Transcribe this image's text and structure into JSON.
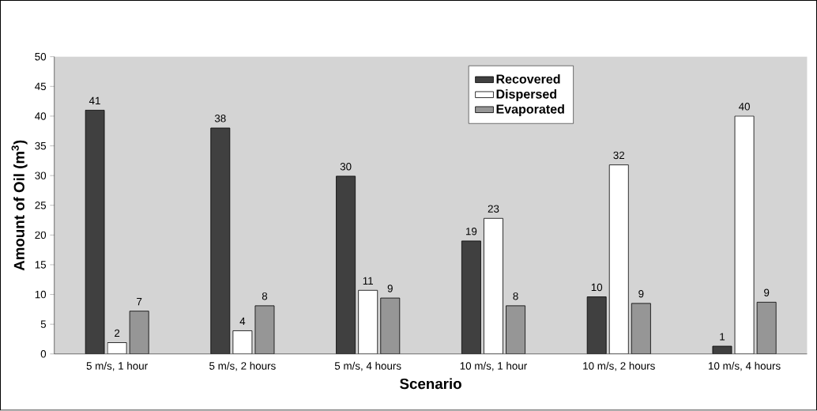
{
  "chart_data": {
    "type": "bar",
    "xlabel": "Scenario",
    "ylabel": "Amount of Oil (m$^{3}$)",
    "categories": [
      "5 m/s, 1 hour",
      "5 m/s, 2 hours",
      "5 m/s, 4 hours",
      "10 m/s, 1 hour",
      "10 m/s, 2 hours",
      "10 m/s, 4 hours"
    ],
    "series": [
      {
        "name": "Recovered",
        "color": "#404040",
        "values": [
          41,
          38,
          29.9,
          19,
          9.6,
          1.3
        ],
        "value_labels": [
          "41",
          "38",
          "30",
          "19",
          "10",
          "1"
        ]
      },
      {
        "name": "Dispersed",
        "color": "#ffffff",
        "values": [
          1.9,
          3.9,
          10.7,
          22.8,
          31.8,
          40
        ],
        "value_labels": [
          "2",
          "4",
          "11",
          "23",
          "32",
          "40"
        ]
      },
      {
        "name": "Evaporated",
        "color": "#969696",
        "values": [
          7.2,
          8.1,
          9.4,
          8.1,
          8.5,
          8.7
        ],
        "value_labels": [
          "7",
          "8",
          "9",
          "8",
          "9",
          "9"
        ]
      }
    ],
    "ylim": [
      0,
      50
    ],
    "yticks": [
      0,
      5,
      10,
      15,
      20,
      25,
      30,
      35,
      40,
      45,
      50
    ],
    "grid": false,
    "legend": "top"
  }
}
